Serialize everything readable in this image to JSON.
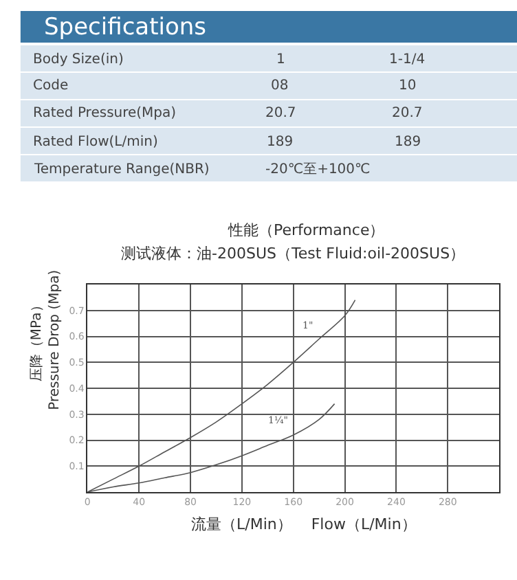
{
  "chart_data": [
    {
      "type": "other",
      "title": "Specifications",
      "annotations": [
        "Body Size(in)",
        "1",
        "1-1/4",
        "Code",
        "08",
        "10",
        "Rated Pressure(Mpa)",
        "20.7",
        "20.7",
        "Rated Flow(L/min)",
        "189",
        "189",
        "Temperature Range(NBR)",
        "-20℃至+100℃"
      ]
    },
    {
      "type": "line",
      "title": "性能（Performance）",
      "subtitle": "测试液体：油-200SUS（Test Fluid:oil-200SUS）",
      "xlabel": "流量（L/Min）    Flow（L/Min）",
      "ylabel": "压降（MPa）\nPressure Drop (Mpa)",
      "xlim": [
        0,
        320
      ],
      "xticks": [
        0,
        40,
        80,
        120,
        160,
        200,
        240,
        280
      ],
      "ylim": [
        0,
        0.8
      ],
      "yticks": [
        0.1,
        0.2,
        0.3,
        0.4,
        0.5,
        0.6,
        0.7
      ],
      "grid": true,
      "marker": "none",
      "line_style": "solid",
      "series": [
        {
          "name": "1\"",
          "color": "#555555",
          "x": [
            0,
            20,
            40,
            60,
            80,
            100,
            120,
            140,
            160,
            180,
            200,
            208
          ],
          "values": [
            0,
            0.05,
            0.1,
            0.155,
            0.21,
            0.27,
            0.34,
            0.415,
            0.5,
            0.59,
            0.68,
            0.74
          ]
        },
        {
          "name": "1¼\"",
          "color": "#555555",
          "x": [
            0,
            20,
            40,
            60,
            80,
            100,
            120,
            140,
            160,
            180,
            192
          ],
          "values": [
            0,
            0.02,
            0.035,
            0.055,
            0.075,
            0.105,
            0.14,
            0.18,
            0.22,
            0.28,
            0.34
          ]
        }
      ]
    }
  ]
}
